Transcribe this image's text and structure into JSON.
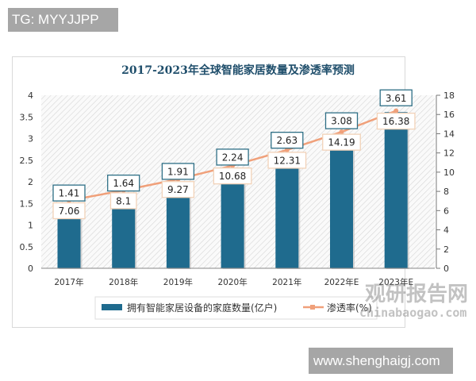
{
  "overlay": {
    "tag_label": "TG: MYYJJPP",
    "url_label": "www.shenghaigj.com",
    "watermark_cn": "观研报告网",
    "watermark_url": "chinabaogao.com"
  },
  "chart_data": {
    "type": "bar",
    "title": "2017-2023年全球智能家居数量及渗透率预测",
    "categories": [
      "2017年",
      "2018年",
      "2019年",
      "2020年",
      "2021年",
      "2022年E",
      "2023年E"
    ],
    "series": [
      {
        "name": "拥有智能家居设备的家庭数量(亿户)",
        "type": "bar",
        "axis": "left",
        "color": "#1f6b8e",
        "values": [
          1.41,
          1.64,
          1.91,
          2.24,
          2.63,
          3.08,
          3.61
        ]
      },
      {
        "name": "渗透率(%)",
        "type": "line",
        "axis": "right",
        "color": "#f0a07a",
        "values": [
          7.06,
          8.1,
          9.27,
          10.68,
          12.31,
          14.19,
          16.38
        ]
      }
    ],
    "left_axis": {
      "min": 0,
      "max": 4,
      "ticks": [
        "0",
        "0.5",
        "1",
        "1.5",
        "2",
        "2.5",
        "3",
        "3.5",
        "4"
      ]
    },
    "right_axis": {
      "min": 0,
      "max": 18,
      "ticks": [
        "0",
        "2",
        "4",
        "6",
        "8",
        "10",
        "12",
        "14",
        "16",
        "18"
      ]
    },
    "legend_position": "bottom",
    "grid": false,
    "xlabel": "",
    "ylabel": ""
  }
}
